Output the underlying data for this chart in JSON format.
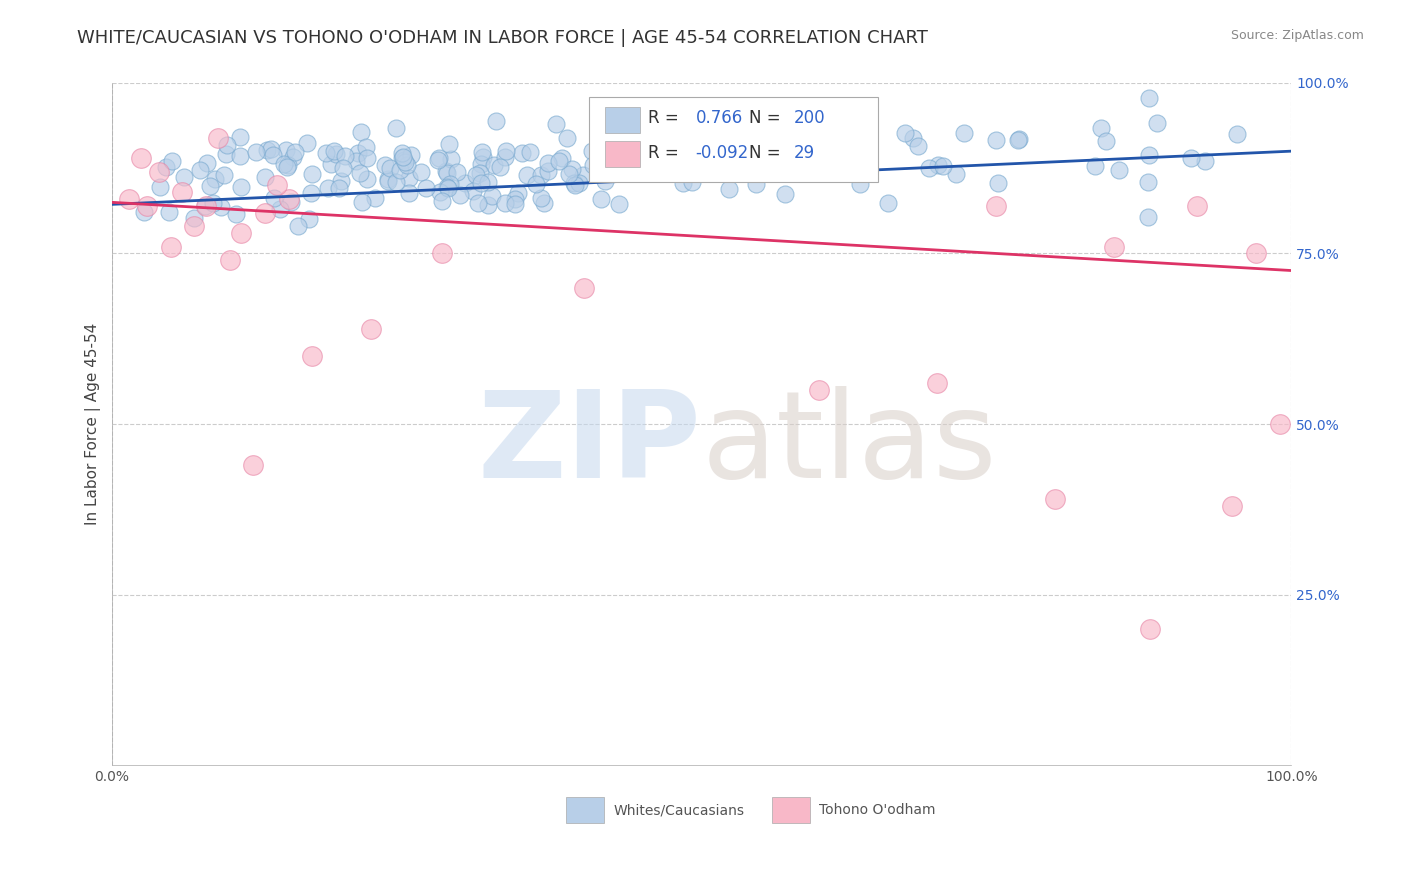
{
  "title": "WHITE/CAUCASIAN VS TOHONO O'ODHAM IN LABOR FORCE | AGE 45-54 CORRELATION CHART",
  "source": "Source: ZipAtlas.com",
  "ylabel": "In Labor Force | Age 45-54",
  "xlim": [
    0.0,
    1.0
  ],
  "ylim": [
    0.0,
    1.0
  ],
  "ytick_positions": [
    0.25,
    0.5,
    0.75,
    1.0
  ],
  "ytick_labels": [
    "25.0%",
    "50.0%",
    "75.0%",
    "100.0%"
  ],
  "xtick_positions": [
    0.0,
    0.25,
    0.5,
    0.75,
    1.0
  ],
  "xtick_labels": [
    "0.0%",
    "",
    "",
    "",
    "100.0%"
  ],
  "blue_R": 0.766,
  "blue_N": 200,
  "pink_R": -0.092,
  "pink_N": 29,
  "blue_face_color": "#b8cfe8",
  "blue_edge_color": "#7aaad0",
  "blue_line_color": "#2255aa",
  "pink_face_color": "#f8b8c8",
  "pink_edge_color": "#e888a8",
  "pink_line_color": "#dd3366",
  "legend_label_blue": "Whites/Caucasians",
  "legend_label_pink": "Tohono O'odham",
  "background_color": "#ffffff",
  "blue_trend_y_start": 0.822,
  "blue_trend_y_end": 0.9,
  "pink_trend_y_start": 0.825,
  "pink_trend_y_end": 0.725,
  "title_fontsize": 13,
  "axis_label_fontsize": 11,
  "tick_fontsize": 10,
  "legend_fontsize": 12,
  "value_color": "#3366cc",
  "grid_color": "#cccccc",
  "grid_style": "--"
}
